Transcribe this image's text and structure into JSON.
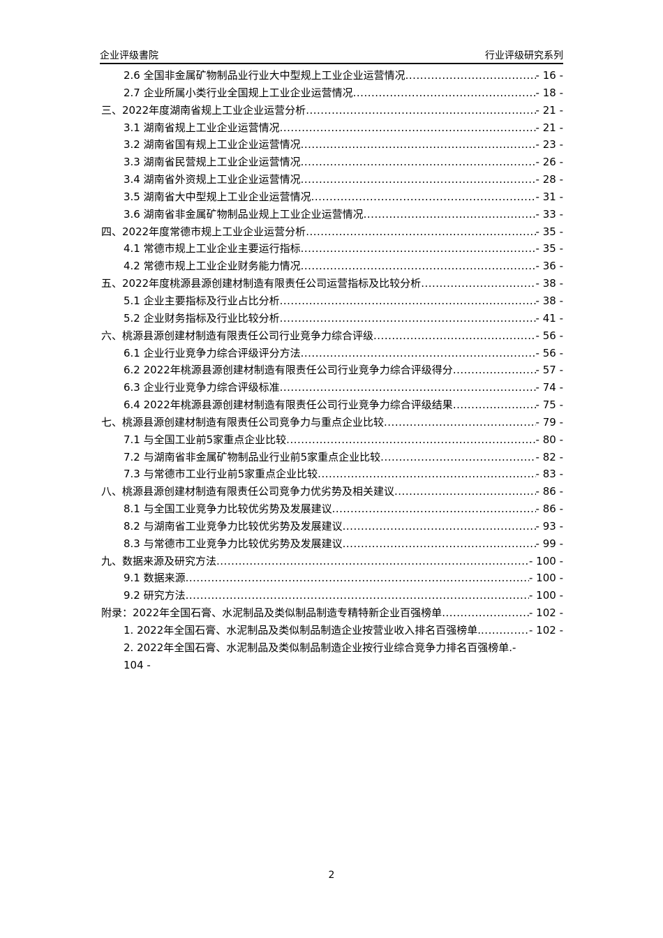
{
  "header": {
    "left": "企业评级書院",
    "right": "行业评级研究系列"
  },
  "toc": [
    {
      "level": 2,
      "title": "2.6 全国非金属矿物制品业行业大中型规上工业企业运营情况",
      "page": "- 16 -"
    },
    {
      "level": 2,
      "title": "2.7 企业所属小类行业全国规上工业企业运营情况",
      "page": "- 18 -"
    },
    {
      "level": 1,
      "title": "三、2022年度湖南省规上工业企业运营分析",
      "page": "- 21 -"
    },
    {
      "level": 2,
      "title": "3.1 湖南省规上工业企业运营情况",
      "page": "- 21 -"
    },
    {
      "level": 2,
      "title": "3.2 湖南省国有规上工业企业运营情况",
      "page": "- 23 -"
    },
    {
      "level": 2,
      "title": "3.3 湖南省民营规上工业企业运营情况",
      "page": "- 26 -"
    },
    {
      "level": 2,
      "title": "3.4 湖南省外资规上工业企业运营情况",
      "page": "- 28 -"
    },
    {
      "level": 2,
      "title": "3.5 湖南省大中型规上工业企业运营情况",
      "page": "- 31 -"
    },
    {
      "level": 2,
      "title": "3.6 湖南省非金属矿物制品业规上工业企业运营情况",
      "page": "- 33 -"
    },
    {
      "level": 1,
      "title": "四、2022年度常德市规上工业企业运营分析",
      "page": "- 35 -"
    },
    {
      "level": 2,
      "title": "4.1 常德市规上工业企业主要运行指标",
      "page": "- 35 -"
    },
    {
      "level": 2,
      "title": "4.2 常德市规上工业企业财务能力情况",
      "page": "- 36 -"
    },
    {
      "level": 1,
      "title": "五、2022年度桃源县源创建材制造有限责任公司运营指标及比较分析",
      "page": "- 38 -"
    },
    {
      "level": 2,
      "title": "5.1 企业主要指标及行业占比分析",
      "page": "- 38 -"
    },
    {
      "level": 2,
      "title": "5.2 企业财务指标及行业比较分析",
      "page": "- 41 -"
    },
    {
      "level": 1,
      "title": "六、桃源县源创建材制造有限责任公司行业竞争力综合评级",
      "page": "- 56 -"
    },
    {
      "level": 2,
      "title": "6.1 企业行业竞争力综合评级评分方法",
      "page": "- 56 -"
    },
    {
      "level": 2,
      "title": "6.2 2022年桃源县源创建材制造有限责任公司行业竞争力综合评级得分",
      "page": "- 57 -"
    },
    {
      "level": 2,
      "title": "6.3 企业行业竞争力综合评级标准",
      "page": "- 74 -"
    },
    {
      "level": 2,
      "title": "6.4 2022年桃源县源创建材制造有限责任公司行业竞争力综合评级结果",
      "page": "- 75 -"
    },
    {
      "level": 1,
      "title": "七、桃源县源创建材制造有限责任公司竞争力与重点企业比较",
      "page": "- 79 -"
    },
    {
      "level": 2,
      "title": "7.1 与全国工业前5家重点企业比较",
      "page": "- 80 -"
    },
    {
      "level": 2,
      "title": "7.2 与湖南省非金属矿物制品业行业前5家重点企业比较",
      "page": "- 82 -"
    },
    {
      "level": 2,
      "title": "7.3 与常德市工业行业前5家重点企业比较",
      "page": "- 83 -"
    },
    {
      "level": 1,
      "title": "八、桃源县源创建材制造有限责任公司竞争力优劣势及相关建议",
      "page": "- 86 -"
    },
    {
      "level": 2,
      "title": "8.1 与全国工业竞争力比较优劣势及发展建议",
      "page": "- 86 -"
    },
    {
      "level": 2,
      "title": "8.2 与湖南省工业竞争力比较优劣势及发展建议",
      "page": "- 93 -"
    },
    {
      "level": 2,
      "title": "8.3 与常德市工业竞争力比较优劣势及发展建议",
      "page": "- 99 -"
    },
    {
      "level": 1,
      "title": "九、数据来源及研究方法",
      "page": "- 100 -"
    },
    {
      "level": 2,
      "title": "9.1 数据来源",
      "page": "- 100 -"
    },
    {
      "level": 2,
      "title": "9.2 研究方法",
      "page": "- 100 -"
    },
    {
      "level": 1,
      "title": "附录：2022年全国石膏、水泥制品及类似制品制造专精特新企业百强榜单",
      "page": "- 102 -"
    },
    {
      "level": 2,
      "title": "1. 2022年全国石膏、水泥制品及类似制品制造企业按营业收入排名百强榜单.",
      "page": "- 102 -"
    }
  ],
  "toc_wrapped": {
    "line1": "2. 2022年全国石膏、水泥制品及类似制品制造企业按行业综合竞争力排名百强榜单.-",
    "line2": "104 -"
  },
  "footer": {
    "page_number": "2"
  }
}
